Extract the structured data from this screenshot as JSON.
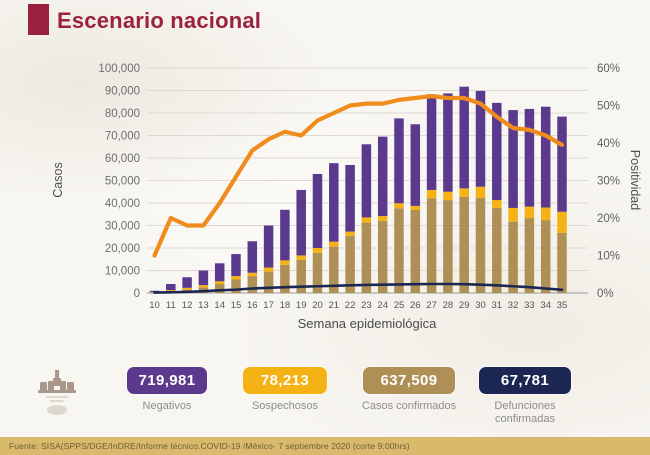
{
  "header": {
    "title": "Escenario nacional",
    "accent_color": "#9b2141"
  },
  "chart_data": {
    "type": "bar",
    "subtype": "stacked-bars-with-lines",
    "title": "",
    "xlabel": "Semana epidemiológica",
    "ylabel_left": "Casos",
    "ylabel_right": "Positividad",
    "grid": true,
    "legend_position": "none",
    "x": [
      10,
      11,
      12,
      13,
      14,
      15,
      16,
      17,
      18,
      19,
      20,
      21,
      22,
      23,
      24,
      25,
      26,
      27,
      28,
      29,
      30,
      31,
      32,
      33,
      34,
      35
    ],
    "y_left": {
      "min": 0,
      "max": 100000,
      "tick_step": 10000,
      "tick_labels": [
        "0",
        "10,000",
        "20,000",
        "30,000",
        "40,000",
        "50,000",
        "60,000",
        "70,000",
        "80,000",
        "90,000",
        "100,000"
      ]
    },
    "y_right": {
      "min": 0,
      "max": 60,
      "tick_step": 10,
      "tick_labels": [
        "0%",
        "10%",
        "20%",
        "30%",
        "40%",
        "50%",
        "60%"
      ]
    },
    "series": [
      {
        "name": "Casos confirmados",
        "type": "bar-stack",
        "axis": "left",
        "color": "#ae8f55",
        "values": [
          300,
          800,
          1500,
          2500,
          4000,
          6000,
          7500,
          9500,
          12500,
          14700,
          17800,
          20600,
          25300,
          31300,
          32100,
          37600,
          36900,
          42100,
          41300,
          42800,
          42200,
          37800,
          31700,
          33300,
          32400,
          26700
        ]
      },
      {
        "name": "Sospechosos",
        "type": "bar-stack",
        "axis": "left",
        "color": "#f5b214",
        "values": [
          200,
          500,
          800,
          1000,
          1200,
          1500,
          1500,
          1800,
          2000,
          2000,
          2200,
          2200,
          2000,
          2300,
          2100,
          2300,
          1800,
          3700,
          3700,
          3700,
          5000,
          3500,
          6100,
          5100,
          5600,
          9400
        ]
      },
      {
        "name": "Negativos",
        "type": "bar-stack",
        "axis": "left",
        "color": "#5b3a8e",
        "values": [
          500,
          2700,
          4700,
          6500,
          8000,
          9800,
          14000,
          18700,
          22500,
          29100,
          32900,
          34900,
          29600,
          32500,
          35300,
          37700,
          36300,
          42500,
          43700,
          45200,
          42600,
          43200,
          43500,
          43400,
          44800,
          42300
        ]
      },
      {
        "name": "Defunciones confirmadas",
        "type": "line",
        "axis": "left",
        "color": "#1c2653",
        "values": [
          200,
          300,
          500,
          800,
          1200,
          1500,
          2000,
          2300,
          2600,
          2800,
          3000,
          3200,
          3400,
          3600,
          3700,
          3800,
          3900,
          4000,
          4000,
          3900,
          3700,
          3400,
          3000,
          2600,
          2000,
          1400
        ]
      },
      {
        "name": "Positividad",
        "type": "line",
        "axis": "right",
        "color": "#f08c1e",
        "values": [
          10,
          20,
          18,
          18,
          24,
          31,
          38,
          41,
          43,
          42,
          46,
          48,
          50,
          50.5,
          50.5,
          51.5,
          52,
          52.5,
          52,
          52,
          50.5,
          47,
          44,
          43.5,
          42,
          39.5
        ]
      }
    ]
  },
  "summary_badges": [
    {
      "value": "719,981",
      "label": "Negativos",
      "color": "#5b3a8e"
    },
    {
      "value": "78,213",
      "label": "Sospechosos",
      "color": "#f5b214"
    },
    {
      "value": "637,509",
      "label": "Casos confirmados",
      "color": "#ae8f55"
    },
    {
      "value": "67,781",
      "label": "Defunciones confirmadas",
      "color": "#1c2653"
    }
  ],
  "footer": {
    "source_text": "Fuente: SISA(SPPS/DGE/InDRE/Informe técnico.COVID-19 /México- 7 septiembre 2020 (corte 9:00hrs)"
  }
}
